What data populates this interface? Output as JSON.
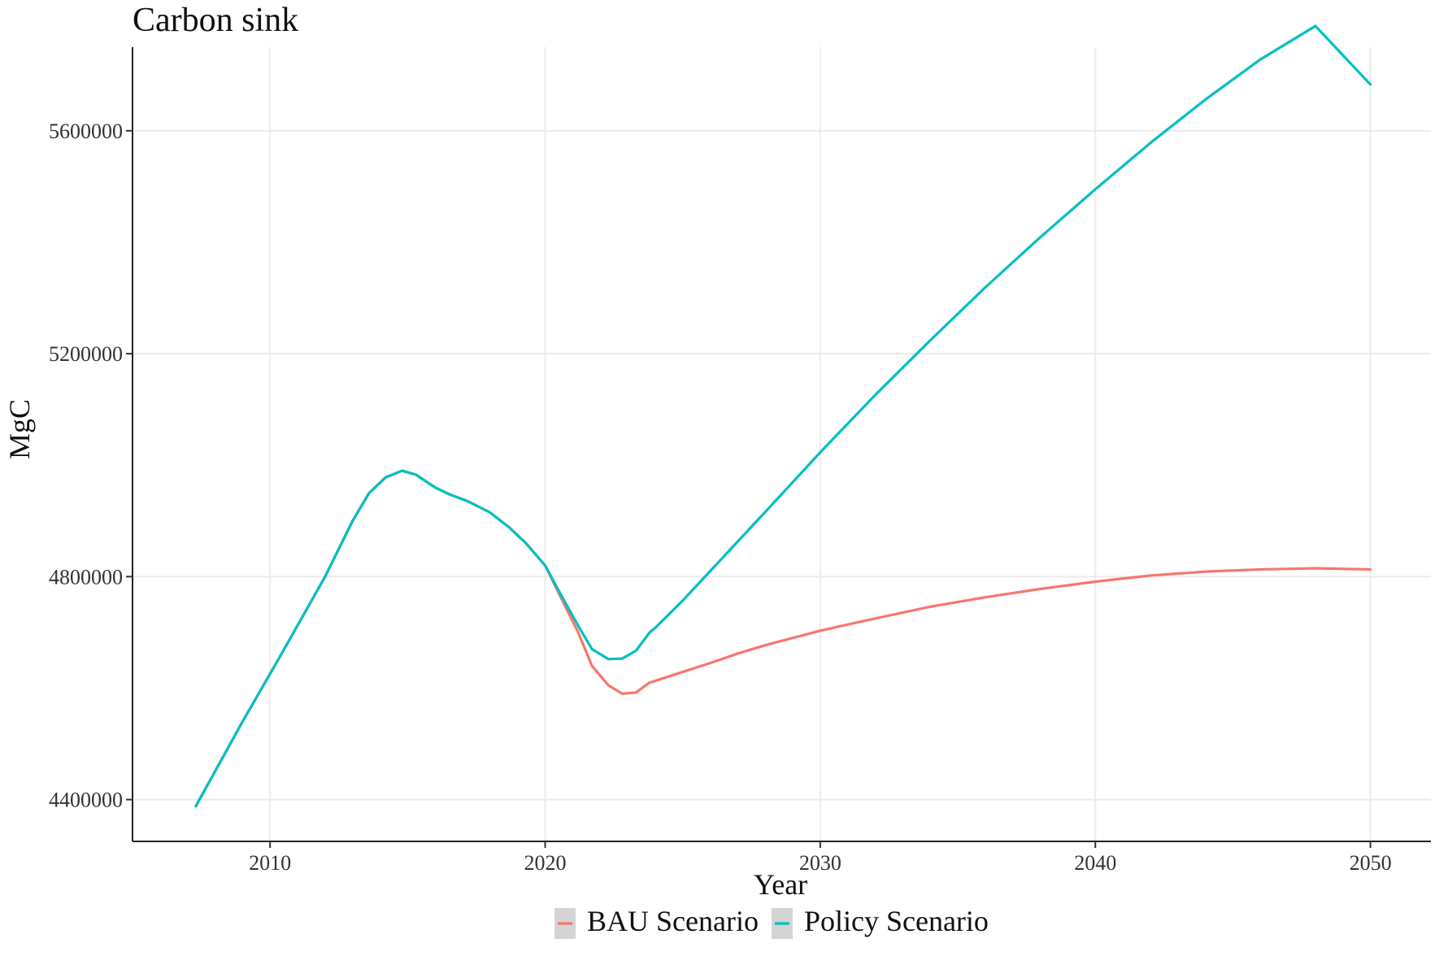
{
  "colors": {
    "bau": "#f8766d",
    "policy": "#00bfc4"
  },
  "chart_data": {
    "type": "line",
    "title": "Carbon sink",
    "xlabel": "Year",
    "ylabel": "MgC",
    "xlim": [
      2005,
      2052.2
    ],
    "ylim": [
      4325000,
      5750000
    ],
    "x_ticks": [
      2010,
      2020,
      2030,
      2040,
      2050
    ],
    "x_tick_labels": [
      "2010",
      "2020",
      "2030",
      "2040",
      "2050"
    ],
    "y_ticks": [
      4400000,
      4800000,
      5200000,
      5600000
    ],
    "y_tick_labels": [
      "4400000",
      "4800000",
      "5200000",
      "5600000"
    ],
    "grid": true,
    "legend_position": "bottom",
    "series": [
      {
        "name": "BAU Scenario",
        "color": "#f8766d",
        "points": [
          [
            2007.3,
            4388000
          ],
          [
            2009,
            4540000
          ],
          [
            2010.4,
            4660000
          ],
          [
            2012,
            4800000
          ],
          [
            2013,
            4900000
          ],
          [
            2013.6,
            4950000
          ],
          [
            2014.2,
            4978000
          ],
          [
            2014.8,
            4990000
          ],
          [
            2015.3,
            4983000
          ],
          [
            2016,
            4960000
          ],
          [
            2016.5,
            4948000
          ],
          [
            2017.2,
            4935000
          ],
          [
            2018,
            4915000
          ],
          [
            2018.7,
            4888000
          ],
          [
            2019.3,
            4860000
          ],
          [
            2020,
            4820000
          ],
          [
            2020.6,
            4760000
          ],
          [
            2021.2,
            4700000
          ],
          [
            2021.7,
            4640000
          ],
          [
            2022.3,
            4605000
          ],
          [
            2022.8,
            4590000
          ],
          [
            2023.3,
            4592000
          ],
          [
            2023.8,
            4610000
          ],
          [
            2024,
            4613000
          ],
          [
            2025,
            4629000
          ],
          [
            2026,
            4645000
          ],
          [
            2027,
            4662000
          ],
          [
            2028,
            4677000
          ],
          [
            2030,
            4703000
          ],
          [
            2032,
            4725000
          ],
          [
            2034,
            4746000
          ],
          [
            2036,
            4763000
          ],
          [
            2038,
            4778000
          ],
          [
            2040,
            4791000
          ],
          [
            2042,
            4802000
          ],
          [
            2044,
            4809000
          ],
          [
            2046,
            4813000
          ],
          [
            2048,
            4815000
          ],
          [
            2050,
            4813000
          ]
        ]
      },
      {
        "name": "Policy Scenario",
        "color": "#00bfc4",
        "points": [
          [
            2007.3,
            4388000
          ],
          [
            2009,
            4540000
          ],
          [
            2010.4,
            4660000
          ],
          [
            2012,
            4800000
          ],
          [
            2013,
            4900000
          ],
          [
            2013.6,
            4950000
          ],
          [
            2014.2,
            4978000
          ],
          [
            2014.8,
            4990000
          ],
          [
            2015.3,
            4983000
          ],
          [
            2016,
            4960000
          ],
          [
            2016.5,
            4948000
          ],
          [
            2017.2,
            4935000
          ],
          [
            2018,
            4915000
          ],
          [
            2018.7,
            4888000
          ],
          [
            2019.3,
            4860000
          ],
          [
            2020,
            4820000
          ],
          [
            2020.6,
            4765000
          ],
          [
            2021.2,
            4712000
          ],
          [
            2021.7,
            4670000
          ],
          [
            2022.3,
            4652000
          ],
          [
            2022.8,
            4653000
          ],
          [
            2023.3,
            4667000
          ],
          [
            2023.8,
            4700000
          ],
          [
            2024,
            4708000
          ],
          [
            2025,
            4757000
          ],
          [
            2026,
            4810000
          ],
          [
            2027,
            4863000
          ],
          [
            2028,
            4916000
          ],
          [
            2030,
            5023000
          ],
          [
            2032,
            5126000
          ],
          [
            2034,
            5224000
          ],
          [
            2036,
            5319000
          ],
          [
            2038,
            5409000
          ],
          [
            2040,
            5495000
          ],
          [
            2042,
            5578000
          ],
          [
            2044,
            5656000
          ],
          [
            2046,
            5728000
          ],
          [
            2048,
            5788000
          ],
          [
            2050,
            5683000
          ]
        ]
      }
    ]
  }
}
